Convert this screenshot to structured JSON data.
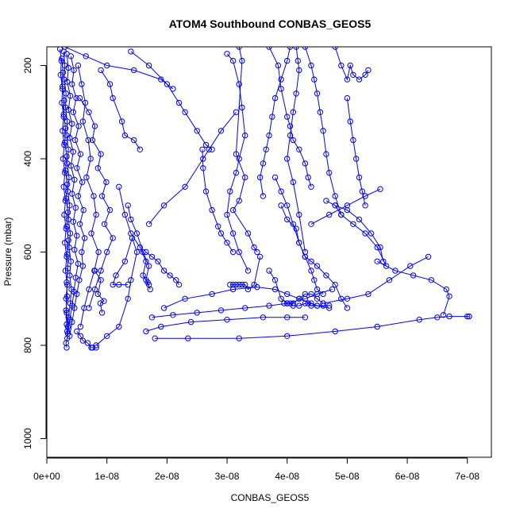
{
  "chart_data": {
    "type": "line",
    "title": "ATOM4 Southbound CONBAS_GEOS5",
    "xlabel": "CONBAS_GEOS5",
    "ylabel": "Pressure (mbar)",
    "xlim": [
      0,
      7.4e-08
    ],
    "ylim": [
      1040,
      160
    ],
    "y_reversed": true,
    "grid": false,
    "legend": "none",
    "x_ticks": [
      {
        "value": 0,
        "label": "0e+00"
      },
      {
        "value": 1e-08,
        "label": "1e-08"
      },
      {
        "value": 2e-08,
        "label": "2e-08"
      },
      {
        "value": 3e-08,
        "label": "3e-08"
      },
      {
        "value": 4e-08,
        "label": "4e-08"
      },
      {
        "value": 5e-08,
        "label": "5e-08"
      },
      {
        "value": 6e-08,
        "label": "6e-08"
      },
      {
        "value": 7e-08,
        "label": "7e-08"
      }
    ],
    "y_ticks": [
      {
        "value": 200,
        "label": "200"
      },
      {
        "value": 400,
        "label": "400"
      },
      {
        "value": 600,
        "label": "600"
      },
      {
        "value": 800,
        "label": "800"
      },
      {
        "value": 1000,
        "label": "1000"
      }
    ],
    "line_color": "#0000ff",
    "marker": "open-circle",
    "series": [
      {
        "x": [
          2.2e-09,
          2.4e-09,
          2.3e-09,
          2.6e-09,
          2.5e-09,
          2.8e-09,
          2.6e-09,
          2.9e-09,
          2.7e-09,
          3e-09,
          2.8e-09,
          3.1e-09,
          2.9e-09,
          3.2e-09,
          3e-09,
          3.3e-09,
          3.1e-09,
          3.4e-09,
          3.2e-09,
          3.3e-09,
          3.5e-09
        ],
        "y": [
          165,
          190,
          220,
          250,
          280,
          310,
          340,
          370,
          400,
          430,
          460,
          490,
          520,
          550,
          580,
          610,
          640,
          670,
          700,
          730,
          760
        ]
      },
      {
        "x": [
          2.8e-09,
          3e-09,
          2.9e-09,
          3.2e-09,
          3.1e-09,
          3.4e-09,
          3.3e-09,
          3.6e-09,
          3.4e-09,
          3.7e-09,
          3.5e-09,
          3.8e-09,
          3.6e-09,
          3.9e-09,
          3.7e-09,
          4e-09,
          3.8e-09,
          4.1e-09,
          3.9e-09,
          3.6e-09,
          3.4e-09
        ],
        "y": [
          170,
          200,
          230,
          260,
          290,
          320,
          350,
          380,
          410,
          440,
          470,
          500,
          530,
          560,
          590,
          620,
          650,
          680,
          710,
          740,
          770
        ]
      },
      {
        "x": [
          3.3e-09,
          3.6e-09,
          3.4e-09,
          3.9e-09,
          3.6e-09,
          4.2e-09,
          3.8e-09,
          4.4e-09,
          4e-09,
          4.6e-09,
          4.2e-09,
          4.8e-09,
          4.4e-09,
          5e-09,
          4.6e-09,
          5.2e-09,
          4.8e-09,
          4.5e-09,
          4.2e-09,
          3.8e-09,
          3.5e-09
        ],
        "y": [
          175,
          205,
          235,
          265,
          295,
          325,
          355,
          385,
          415,
          445,
          475,
          505,
          535,
          565,
          595,
          625,
          655,
          685,
          715,
          745,
          775
        ]
      },
      {
        "x": [
          4e-09,
          4.5e-09,
          4.2e-09,
          4.9e-09,
          4.4e-09,
          5.3e-09,
          4.7e-09,
          5.6e-09,
          5e-09,
          5.9e-09,
          5.2e-09,
          6.1e-09,
          5.5e-09,
          6.3e-09,
          5.8e-09,
          6e-09,
          5.4e-09,
          5e-09,
          4.6e-09,
          4.2e-09,
          3.8e-09
        ],
        "y": [
          180,
          210,
          240,
          270,
          300,
          330,
          360,
          390,
          420,
          450,
          480,
          510,
          540,
          570,
          600,
          630,
          660,
          690,
          720,
          750,
          780
        ]
      },
      {
        "x": [
          2.5e-09,
          2.7e-09,
          2.6e-09,
          2.9e-09,
          2.8e-09,
          3.1e-09,
          3e-09,
          3.3e-09,
          3.1e-09,
          3.4e-09,
          3.2e-09,
          3.5e-09,
          3.3e-09,
          3.6e-09,
          3.4e-09,
          3.5e-09,
          3.3e-09,
          3.4e-09,
          3.2e-09,
          3.3e-09,
          3.4e-09,
          3.2e-09,
          3.3e-09
        ],
        "y": [
          185,
          215,
          245,
          275,
          305,
          335,
          365,
          395,
          425,
          455,
          485,
          515,
          545,
          575,
          605,
          635,
          665,
          695,
          725,
          755,
          785,
          795,
          805
        ]
      },
      {
        "x": [
          5.2e-09,
          5.8e-09,
          6.4e-09,
          6e-09,
          6.9e-09,
          7.3e-09,
          6.6e-09,
          7.8e-09,
          8.2e-09,
          7.4e-09,
          8.6e-09,
          7.9e-09,
          7e-09,
          6.2e-09,
          5.6e-09
        ],
        "y": [
          200,
          240,
          280,
          320,
          360,
          400,
          440,
          480,
          520,
          560,
          600,
          640,
          680,
          720,
          760
        ]
      },
      {
        "x": [
          5.5e-09,
          7e-09,
          8e-09,
          7.6e-09,
          9e-09,
          8.5e-09,
          9.9e-09,
          9.2e-09,
          1.05e-08,
          9.6e-09,
          1.1e-08,
          1e-08,
          9e-09,
          8e-09,
          7e-09
        ],
        "y": [
          270,
          300,
          330,
          360,
          390,
          420,
          450,
          480,
          510,
          540,
          570,
          600,
          640,
          680,
          720
        ]
      },
      {
        "x": [
          8e-09,
          9e-09,
          8.5e-09,
          9.5e-09,
          8.9e-09,
          9.2e-09
        ],
        "y": [
          640,
          660,
          690,
          705,
          710,
          730
        ]
      },
      {
        "x": [
          5e-09,
          5.6e-09,
          6e-09,
          6.8e-09,
          7.4e-09,
          7.6e-09,
          8.2e-09
        ],
        "y": [
          770,
          780,
          790,
          795,
          805,
          805,
          805
        ]
      },
      {
        "x": [
          8.2e-09,
          1e-08,
          1.2e-08,
          1.35e-08,
          1.4e-08,
          1.5e-08,
          1.42e-08,
          1.3e-08,
          1.15e-08,
          1.1e-08,
          1.2e-08,
          1.35e-08
        ],
        "y": [
          800,
          780,
          760,
          700,
          660,
          600,
          570,
          620,
          650,
          670,
          670,
          670
        ]
      },
      {
        "x": [
          1.2e-08,
          1.3e-08,
          1.4e-08,
          1.55e-08,
          1.65e-08,
          1.6e-08,
          1.68e-08,
          1.7e-08
        ],
        "y": [
          460,
          520,
          560,
          590,
          620,
          650,
          665,
          670
        ]
      },
      {
        "x": [
          1.35e-08,
          1.4e-08,
          1.5e-08,
          1.6e-08,
          1.7e-08,
          1.65e-08,
          1.72e-08
        ],
        "y": [
          500,
          530,
          560,
          600,
          630,
          660,
          680
        ]
      },
      {
        "x": [
          9e-09,
          1.05e-08,
          1.1e-08,
          1.25e-08,
          1.3e-08,
          1.45e-08,
          1.55e-08
        ],
        "y": [
          210,
          240,
          270,
          320,
          350,
          360,
          380
        ]
      },
      {
        "x": [
          3e-09,
          6.5e-09,
          1e-08,
          1.45e-08,
          1.9e-08,
          2.1e-08
        ],
        "y": [
          160,
          180,
          200,
          210,
          230,
          250
        ]
      },
      {
        "x": [
          1.7e-08,
          1.95e-08,
          2.3e-08,
          2.6e-08,
          2.7e-08,
          2.9e-08,
          3.15e-08
        ],
        "y": [
          540,
          500,
          460,
          400,
          380,
          340,
          300
        ]
      },
      {
        "x": [
          1.4e-08,
          1.7e-08,
          2e-08,
          2.2e-08,
          2.3e-08,
          2.5e-08,
          2.65e-08,
          2.75e-08
        ],
        "y": [
          170,
          200,
          240,
          280,
          300,
          340,
          370,
          380
        ]
      },
      {
        "x": [
          2.59e-08,
          2.6e-08,
          2.65e-08,
          2.75e-08,
          2.85e-08,
          2.9e-08,
          3e-08,
          3.1e-08
        ],
        "y": [
          380,
          420,
          470,
          510,
          545,
          560,
          580,
          600
        ]
      },
      {
        "x": [
          3e-08,
          3.1e-08,
          3.2e-08,
          3.25e-08,
          3.3e-08,
          3.2e-08,
          3.15e-08,
          3.05e-08,
          3e-08,
          3.1e-08,
          3.2e-08,
          3.35e-08
        ],
        "y": [
          175,
          190,
          240,
          290,
          350,
          400,
          430,
          470,
          520,
          560,
          600,
          640
        ]
      },
      {
        "x": [
          3.2e-08,
          3.25e-08,
          3.15e-08,
          3.3e-08,
          3.2e-08,
          3.1e-08,
          3.35e-08,
          3.45e-08,
          3.5e-08
        ],
        "y": [
          160,
          190,
          390,
          440,
          490,
          510,
          560,
          590,
          600
        ]
      },
      {
        "x": [
          3.05e-08,
          3.1e-08,
          3.15e-08,
          3.2e-08,
          3.25e-08,
          3.3e-08,
          3.35e-08,
          3.45e-08,
          3.55e-08
        ],
        "y": [
          670,
          670,
          670,
          670,
          670,
          670,
          680,
          670,
          610
        ]
      },
      {
        "x": [
          3.7e-08,
          3.85e-08,
          3.9e-08,
          4e-08,
          4.05e-08,
          4.1e-08,
          4.2e-08,
          4.3e-08,
          4.35e-08,
          4.4e-08
        ],
        "y": [
          160,
          200,
          250,
          310,
          330,
          360,
          380,
          410,
          440,
          460
        ]
      },
      {
        "x": [
          4.05e-08,
          4e-08,
          3.9e-08,
          3.8e-08,
          3.75e-08,
          3.7e-08,
          3.65e-08,
          3.6e-08,
          3.55e-08,
          3.6e-08
        ],
        "y": [
          160,
          190,
          230,
          270,
          310,
          350,
          380,
          410,
          440,
          480
        ]
      },
      {
        "x": [
          4.15e-08,
          4.18e-08,
          4.2e-08,
          4.15e-08,
          4.1e-08,
          4.05e-08,
          4e-08,
          4.1e-08,
          4.2e-08,
          4.3e-08
        ],
        "y": [
          160,
          190,
          210,
          260,
          300,
          350,
          400,
          450,
          520,
          600
        ]
      },
      {
        "x": [
          4.3e-08,
          4.4e-08,
          4.45e-08,
          4.5e-08,
          4.55e-08,
          4.6e-08,
          4.65e-08,
          4.7e-08,
          4.8e-08,
          4.9e-08
        ],
        "y": [
          160,
          200,
          230,
          260,
          300,
          340,
          390,
          430,
          480,
          520
        ]
      },
      {
        "x": [
          4.8e-08,
          4.9e-08,
          5e-08,
          5.05e-08,
          5.1e-08,
          5.2e-08,
          5.3e-08,
          5.35e-08
        ],
        "y": [
          160,
          200,
          230,
          200,
          220,
          230,
          220,
          210
        ]
      },
      {
        "x": [
          5e-08,
          5.05e-08,
          5.1e-08,
          5.15e-08,
          5.2e-08,
          5.25e-08,
          5.3e-08
        ],
        "y": [
          270,
          320,
          360,
          400,
          440,
          470,
          500
        ]
      },
      {
        "x": [
          3.8e-08,
          3.9e-08,
          4e-08,
          4.1e-08,
          4.2e-08,
          4.3e-08,
          4.4e-08,
          4.45e-08,
          4.5e-08,
          4.6e-08
        ],
        "y": [
          440,
          470,
          500,
          540,
          580,
          610,
          640,
          660,
          680,
          690
        ]
      },
      {
        "x": [
          3.9e-08,
          4e-08,
          4.15e-08,
          4.2e-08,
          4.3e-08,
          4.4e-08,
          4.5e-08,
          4.65e-08,
          4.8e-08,
          4.9e-08,
          5e-08
        ],
        "y": [
          500,
          530,
          550,
          580,
          610,
          620,
          630,
          650,
          670,
          700,
          720
        ]
      },
      {
        "x": [
          3.7e-08,
          3.8e-08,
          3.9e-08,
          4e-08,
          4.1e-08,
          4.2e-08,
          4.3e-08,
          4.4e-08,
          4.5e-08,
          4.6e-08
        ],
        "y": [
          640,
          660,
          700,
          710,
          710,
          700,
          690,
          690,
          700,
          710
        ]
      },
      {
        "x": [
          3.95e-08,
          4.05e-08,
          4.1e-08,
          4.2e-08,
          4.3e-08,
          4.35e-08,
          4.4e-08,
          4.5e-08,
          4.6e-08,
          4.7e-08
        ],
        "y": [
          710,
          710,
          715,
          715,
          710,
          710,
          715,
          715,
          715,
          715
        ]
      },
      {
        "x": [
          4.65e-08,
          4.8e-08,
          5e-08,
          5.2e-08,
          5.4e-08,
          5.55e-08,
          5.6e-08
        ],
        "y": [
          490,
          500,
          510,
          530,
          560,
          590,
          620
        ]
      },
      {
        "x": [
          4.4e-08,
          4.7e-08,
          5e-08,
          5.3e-08,
          5.55e-08
        ],
        "y": [
          540,
          520,
          500,
          480,
          465
        ]
      },
      {
        "x": [
          4.8e-08,
          4.9e-08,
          5.1e-08,
          5.3e-08,
          5.5e-08,
          5.65e-08
        ],
        "y": [
          500,
          520,
          540,
          560,
          590,
          630
        ]
      },
      {
        "x": [
          1.95e-08,
          2.3e-08,
          2.75e-08,
          3.1e-08,
          3.5e-08,
          3.8e-08,
          4e-08,
          4.2e-08,
          4.4e-08,
          4.5e-08,
          4.7e-08
        ],
        "y": [
          720,
          700,
          690,
          680,
          675,
          680,
          690,
          700,
          710,
          715,
          720
        ]
      },
      {
        "x": [
          1.75e-08,
          2.1e-08,
          2.5e-08,
          2.9e-08,
          3.3e-08,
          3.7e-08,
          4e-08,
          4.3e-08,
          4.5e-08,
          4.75e-08
        ],
        "y": [
          740,
          735,
          730,
          725,
          720,
          715,
          710,
          700,
          690,
          680
        ]
      },
      {
        "x": [
          1.65e-08,
          1.9e-08,
          2.4e-08,
          3e-08,
          3.6e-08,
          4e-08,
          4.3e-08
        ],
        "y": [
          770,
          760,
          750,
          745,
          740,
          740,
          740
        ]
      },
      {
        "x": [
          1.8e-08,
          2.35e-08,
          3.2e-08,
          4e-08,
          4.8e-08,
          5.5e-08,
          6.2e-08,
          6.5e-08,
          6.7e-08,
          7e-08,
          7.03e-08
        ],
        "y": [
          785,
          785,
          785,
          780,
          770,
          760,
          745,
          740,
          738,
          738,
          738
        ]
      },
      {
        "x": [
          4.6e-08,
          5e-08,
          5.35e-08,
          5.7e-08,
          6.05e-08,
          6.35e-08
        ],
        "y": [
          710,
          700,
          690,
          660,
          630,
          610
        ]
      },
      {
        "x": [
          5.5e-08,
          5.8e-08,
          6.1e-08,
          6.4e-08,
          6.65e-08,
          6.7e-08,
          6.6e-08
        ],
        "y": [
          620,
          640,
          650,
          660,
          680,
          695,
          735
        ]
      },
      {
        "x": [
          1.65e-08,
          1.75e-08,
          1.85e-08,
          1.95e-08,
          2.05e-08,
          2.15e-08,
          2.2e-08
        ],
        "y": [
          600,
          610,
          620,
          640,
          650,
          660,
          670
        ]
      }
    ]
  }
}
